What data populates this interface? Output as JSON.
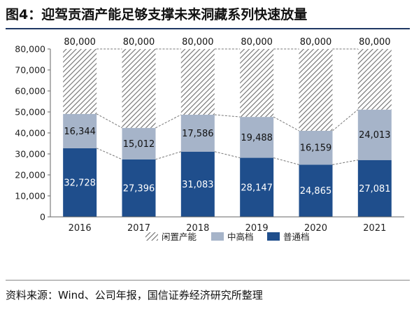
{
  "title": "图4：迎驾贡酒产能足够支撑未来洞藏系列快速放量",
  "source": "资料来源：Wind、公司年报，国信证券经济研究所整理",
  "colors": {
    "premium": "#1f4e8c",
    "mid": "#a6b4c9",
    "idle_hatch": "#777777",
    "axis": "#666666"
  },
  "chart_data": {
    "type": "bar",
    "stacked": true,
    "categories": [
      "2016",
      "2017",
      "2018",
      "2019",
      "2020",
      "2021"
    ],
    "ylim": [
      0,
      80000
    ],
    "yticks": [
      "0",
      "10,000",
      "20,000",
      "30,000",
      "40,000",
      "50,000",
      "60,000",
      "70,000",
      "80,000"
    ],
    "legend_position": "bottom",
    "series": [
      {
        "name": "普通档",
        "values": [
          32728,
          27396,
          31083,
          28147,
          24865,
          27081
        ],
        "labels": [
          "32,728",
          "27,396",
          "31,083",
          "28,147",
          "24,865",
          "27,081"
        ]
      },
      {
        "name": "中高档",
        "values": [
          16344,
          15012,
          17586,
          19488,
          16159,
          24013
        ],
        "labels": [
          "16,344",
          "15,012",
          "17,586",
          "19,488",
          "16,159",
          "24,013"
        ]
      },
      {
        "name": "闲置产能",
        "values": [
          30928,
          37592,
          31331,
          32365,
          38976,
          28906
        ],
        "labels": []
      }
    ],
    "totals": [
      "80,000",
      "80,000",
      "80,000",
      "80,000",
      "80,000",
      "80,000"
    ],
    "legend": [
      "闲置产能",
      "中高档",
      "普通档"
    ]
  }
}
